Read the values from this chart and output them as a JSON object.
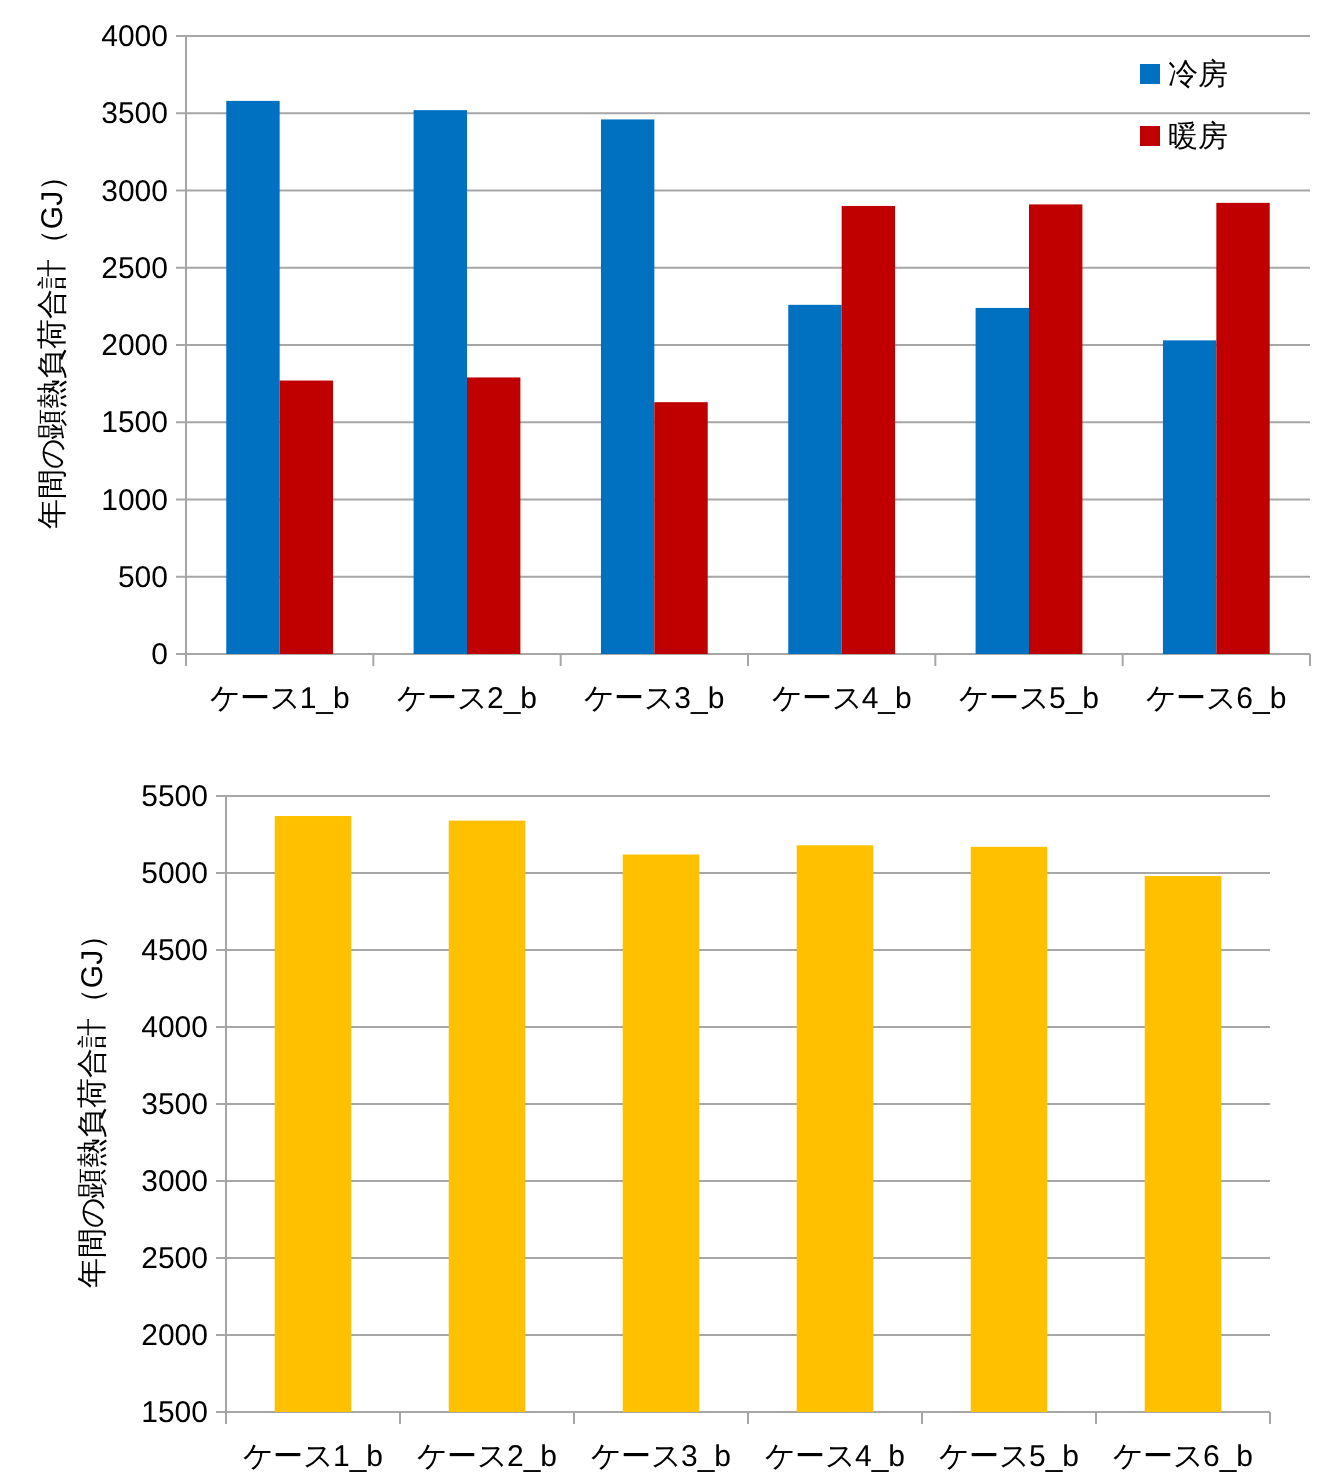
{
  "chart_data": [
    {
      "type": "bar",
      "ylabel": "年間の顕熱負荷合計（GJ）",
      "categories": [
        "ケース1_b",
        "ケース2_b",
        "ケース3_b",
        "ケース4_b",
        "ケース5_b",
        "ケース6_b"
      ],
      "series": [
        {
          "name": "冷房",
          "color": "#0070c0",
          "values": [
            3580,
            3520,
            3460,
            2260,
            2240,
            2030
          ]
        },
        {
          "name": "暖房",
          "color": "#c00000",
          "values": [
            1770,
            1790,
            1630,
            2900,
            2910,
            2920
          ]
        }
      ],
      "ylim": [
        0,
        4000
      ],
      "yticks": [
        0,
        500,
        1000,
        1500,
        2000,
        2500,
        3000,
        3500,
        4000
      ],
      "grid": "y",
      "legend": "top right"
    },
    {
      "type": "bar",
      "ylabel": "年間の顕熱負荷合計（GJ）",
      "categories": [
        "ケース1_b",
        "ケース2_b",
        "ケース3_b",
        "ケース4_b",
        "ケース5_b",
        "ケース6_b"
      ],
      "series": [
        {
          "color": "#ffc000",
          "values": [
            5370,
            5340,
            5120,
            5180,
            5170,
            4980
          ]
        }
      ],
      "ylim": [
        1500,
        5500
      ],
      "yticks": [
        1500,
        2000,
        2500,
        3000,
        3500,
        4000,
        4500,
        5000,
        5500
      ],
      "grid": "y"
    }
  ]
}
